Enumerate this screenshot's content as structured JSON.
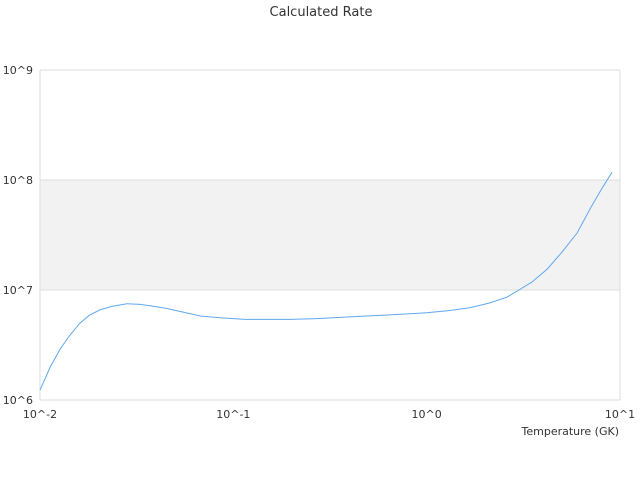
{
  "chart_data": {
    "type": "line",
    "title": "Calculated Rate",
    "xlabel": "Temperature (GK)",
    "ylabel": "",
    "x_scale": "log",
    "y_scale": "log",
    "xlim": [
      0.01,
      10
    ],
    "ylim": [
      1000000,
      1000000000
    ],
    "x_ticks": [
      "10^-2",
      "10^-1",
      "10^0",
      "10^1"
    ],
    "y_ticks": [
      "10^6",
      "10^7",
      "10^8",
      "10^9"
    ],
    "grid": "horizontal, alternating band shading",
    "line_color": "#5ea8f0",
    "band_color": "#f2f2f2",
    "series": [
      {
        "x": [
          0.01,
          0.0113,
          0.0127,
          0.0143,
          0.0161,
          0.018,
          0.0204,
          0.0235,
          0.0282,
          0.033,
          0.037,
          0.045,
          0.055,
          0.0674,
          0.085,
          0.115,
          0.15,
          0.197,
          0.27,
          0.4,
          0.6,
          1.0,
          1.3,
          1.67,
          2.1,
          2.6,
          3.0,
          3.5,
          4.2,
          5.0,
          6.0,
          7.1,
          8.1,
          9.1
        ],
        "y": [
          1230000,
          2000000,
          2900000,
          3900000,
          5000000,
          5900000,
          6600000,
          7100000,
          7500000,
          7400000,
          7200000,
          6800000,
          6300000,
          5800000,
          5600000,
          5400000,
          5400000,
          5400000,
          5500000,
          5700000,
          5900000,
          6200000,
          6500000,
          6900000,
          7600000,
          8600000,
          10000000,
          11800000,
          15500000,
          22000000,
          33000000,
          57000000,
          85000000,
          118000000
        ]
      }
    ]
  }
}
